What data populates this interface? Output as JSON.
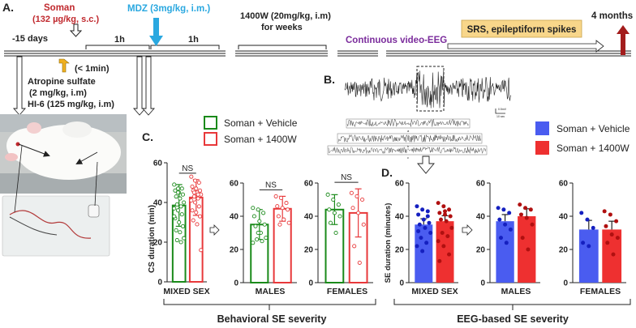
{
  "panels": {
    "A": "A.",
    "B": "B.",
    "C": "C.",
    "D": "D."
  },
  "timeline": {
    "soman": "Soman",
    "soman_dose": "(132 µg/kg, s.c.)",
    "minus15": "-15 days",
    "one_hour_1": "1h",
    "one_hour_2": "1h",
    "mdz": "MDZ (3mg/kg, i.m.)",
    "drug_1400w_line1": "1400W (20mg/kg, i.m)",
    "drug_1400w_line2": "for weeks",
    "video_eeg": "Continuous video-EEG",
    "srs_box": "SRS, epileptiform spikes",
    "four_months": "4 months",
    "lt1min": "(< 1min)",
    "atropine": "Atropine sulfate",
    "atropine_dose": "(2 mg/kg, i.m)",
    "hi6": "HI-6 (125 mg/kg, i.m)",
    "colors": {
      "soman": "#c0282d",
      "mdz": "#2aa8e0",
      "video": "#7b2c9c",
      "srs_fill": "#f8d68a",
      "up_arrow": "#f0b020",
      "red_arrow": "#a31d1d"
    }
  },
  "legend_c": {
    "vehicle": "Soman + Vehicle",
    "w1400": "Soman + 1400W"
  },
  "legend_d": {
    "vehicle": "Soman + Vehicle",
    "w1400": "Soman + 1400W"
  },
  "eeg": {
    "scale_main": "0.5mV",
    "scale_time": "10 sec",
    "sub_labels": [
      "a",
      "b",
      "c"
    ]
  },
  "behavioral_label": "Behavioral SE severity",
  "eeg_label": "EEG-based SE severity",
  "colors": {
    "green": "#1a8a1a",
    "red_open": "#e8383a",
    "blue": "#4a5cf0",
    "red_fill": "#ee3030",
    "blue_dot": "#1520c0",
    "red_dot": "#b01010"
  },
  "chart_data": [
    {
      "id": "c_mixed",
      "type": "bar",
      "title": "MIXED SEX",
      "ylabel": "CS duration (min)",
      "ylim": [
        0,
        60
      ],
      "yticks": [
        0,
        20,
        40,
        60
      ],
      "significance": "NS",
      "series": [
        {
          "name": "Soman + Vehicle",
          "values": [
            38.5
          ],
          "error": [
            10.5
          ],
          "points": [
            49,
            47,
            47,
            46,
            45,
            44,
            43,
            42,
            40,
            39,
            38,
            37,
            36,
            34,
            32,
            30,
            28,
            26,
            25,
            22,
            21,
            20,
            33,
            45
          ]
        },
        {
          "name": "Soman + 1400W",
          "values": [
            42.5
          ],
          "error": [
            9
          ],
          "points": [
            53,
            51,
            50,
            48,
            47,
            46,
            46,
            45,
            44,
            43,
            42,
            41,
            40,
            38,
            36,
            35,
            33,
            31,
            29,
            16,
            45,
            44
          ]
        }
      ]
    },
    {
      "id": "c_males",
      "type": "bar",
      "title": "MALES",
      "ylim": [
        0,
        60
      ],
      "yticks": [
        0,
        20,
        40,
        60
      ],
      "significance": "NS",
      "series": [
        {
          "name": "Soman + Vehicle",
          "values": [
            35
          ],
          "error": [
            9
          ],
          "points": [
            45,
            44,
            42,
            40,
            37,
            35,
            34,
            30,
            27,
            26,
            25,
            24,
            30
          ]
        },
        {
          "name": "Soman + 1400W",
          "values": [
            44.5
          ],
          "error": [
            7.5
          ],
          "points": [
            52,
            51,
            48,
            46,
            45,
            44,
            40,
            38,
            36,
            35
          ]
        }
      ]
    },
    {
      "id": "c_females",
      "type": "bar",
      "title": "FEMALES",
      "ylim": [
        0,
        60
      ],
      "yticks": [
        0,
        20,
        40,
        60
      ],
      "significance": "NS",
      "series": [
        {
          "name": "Soman + Vehicle",
          "values": [
            44
          ],
          "error": [
            9
          ],
          "points": [
            53,
            50,
            47,
            44,
            42,
            40,
            36,
            30
          ]
        },
        {
          "name": "Soman + 1400W",
          "values": [
            42
          ],
          "error": [
            14.5
          ],
          "points": [
            54,
            52,
            50,
            45,
            42,
            35,
            22,
            12
          ]
        }
      ]
    },
    {
      "id": "d_mixed",
      "type": "bar",
      "title": "MIXED SEX",
      "ylabel": "SE duration (minutes)",
      "ylim": [
        0,
        60
      ],
      "yticks": [
        0,
        20,
        40,
        60
      ],
      "series": [
        {
          "name": "Soman + Vehicle",
          "values": [
            35
          ],
          "error": [
            3.5
          ],
          "points": [
            46,
            44,
            43,
            41,
            38,
            36,
            35,
            33,
            30,
            27,
            24,
            22,
            19,
            40,
            31
          ]
        },
        {
          "name": "Soman + 1400W",
          "values": [
            37
          ],
          "error": [
            3.3
          ],
          "points": [
            48,
            46,
            44,
            42,
            41,
            40,
            38,
            37,
            33,
            30,
            28,
            25,
            22,
            17,
            13,
            43
          ]
        }
      ]
    },
    {
      "id": "d_males",
      "type": "bar",
      "title": "MALES",
      "ylim": [
        0,
        60
      ],
      "yticks": [
        0,
        20,
        40,
        60
      ],
      "series": [
        {
          "name": "Soman + Vehicle",
          "values": [
            37
          ],
          "error": [
            4
          ],
          "points": [
            45,
            44,
            42,
            38,
            35,
            32,
            27,
            24
          ]
        },
        {
          "name": "Soman + 1400W",
          "values": [
            40
          ],
          "error": [
            4.5
          ],
          "points": [
            47,
            45,
            44,
            41,
            39,
            35,
            27,
            20
          ]
        }
      ]
    },
    {
      "id": "d_females",
      "type": "bar",
      "title": "FEMALES",
      "ylim": [
        0,
        60
      ],
      "yticks": [
        0,
        20,
        40,
        60
      ],
      "series": [
        {
          "name": "Soman + Vehicle",
          "values": [
            32
          ],
          "error": [
            5.5
          ],
          "points": [
            42,
            38,
            33,
            24,
            22
          ]
        },
        {
          "name": "Soman + 1400W",
          "values": [
            32
          ],
          "error": [
            5
          ],
          "points": [
            43,
            41,
            37,
            34,
            29,
            27,
            24,
            17
          ]
        }
      ]
    }
  ]
}
